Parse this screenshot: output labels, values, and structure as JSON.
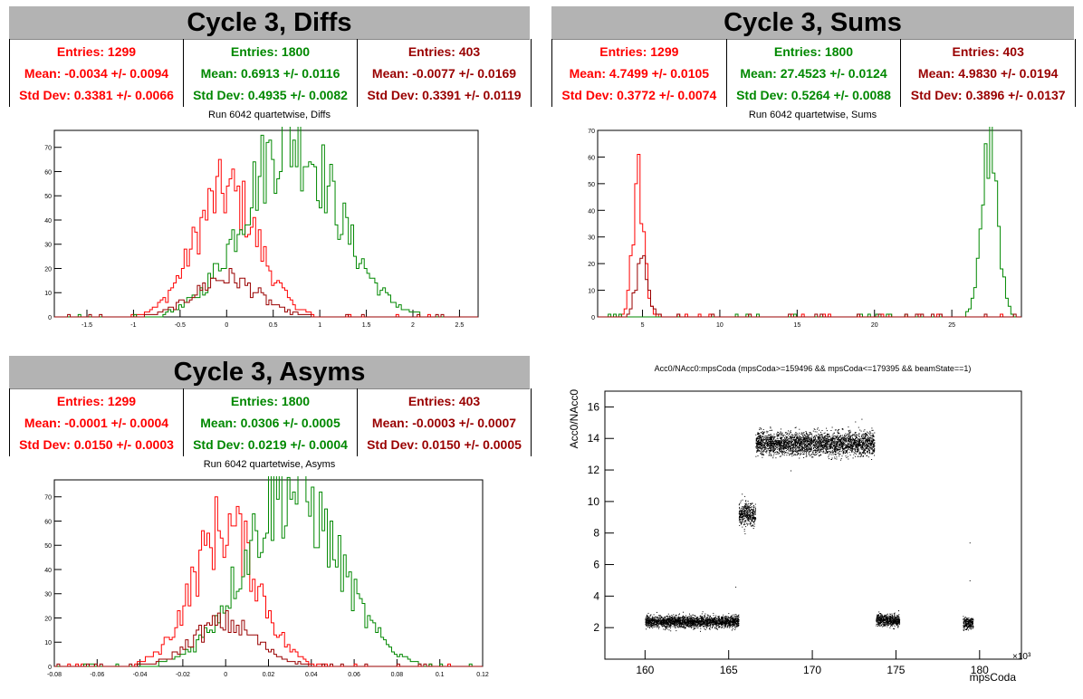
{
  "colors": {
    "red": "#ff0000",
    "green": "#008800",
    "darkred": "#990000"
  },
  "panels": {
    "diffs": {
      "title": "Cycle 3, Diffs",
      "subtitle": "Run 6042 quartetwise, Diffs",
      "stats": [
        {
          "entries": "Entries: 1299",
          "mean": "Mean: -0.0034 +/- 0.0094",
          "std": "Std Dev: 0.3381 +/- 0.0066"
        },
        {
          "entries": "Entries: 1800",
          "mean": "Mean: 0.6913 +/- 0.0116",
          "std": "Std Dev: 0.4935 +/- 0.0082"
        },
        {
          "entries": "Entries: 403",
          "mean": "Mean: -0.0077 +/- 0.0169",
          "std": "Std Dev: 0.3391 +/- 0.0119"
        }
      ]
    },
    "sums": {
      "title": "Cycle 3, Sums",
      "subtitle": "Run 6042 quartetwise, Sums",
      "stats": [
        {
          "entries": "Entries: 1299",
          "mean": "Mean: 4.7499 +/- 0.0105",
          "std": "Std Dev: 0.3772 +/- 0.0074"
        },
        {
          "entries": "Entries: 1800",
          "mean": "Mean: 27.4523 +/- 0.0124",
          "std": "Std Dev: 0.5264 +/- 0.0088"
        },
        {
          "entries": "Entries: 403",
          "mean": "Mean: 4.9830 +/- 0.0194",
          "std": "Std Dev: 0.3896 +/- 0.0137"
        }
      ]
    },
    "asyms": {
      "title": "Cycle 3, Asyms",
      "subtitle": "Run 6042 quartetwise, Asyms",
      "stats": [
        {
          "entries": "Entries: 1299",
          "mean": "Mean: -0.0001 +/- 0.0004",
          "std": "Std Dev: 0.0150 +/- 0.0003"
        },
        {
          "entries": "Entries: 1800",
          "mean": "Mean: 0.0306 +/- 0.0005",
          "std": "Std Dev: 0.0219 +/- 0.0004"
        },
        {
          "entries": "Entries: 403",
          "mean": "Mean: -0.0003 +/- 0.0007",
          "std": "Std Dev: 0.0150 +/- 0.0005"
        }
      ]
    },
    "scatter": {
      "title": "Acc0/NAcc0:mpsCoda (mpsCoda>=159496 && mpsCoda<=179395 && beamState==1)",
      "xlabel": "mpsCoda",
      "ylabel": "Acc0/NAcc0",
      "x_multiplier": "×10³"
    }
  },
  "chart_data": [
    {
      "type": "histogram",
      "xlim": [
        -1.85,
        2.7
      ],
      "ylim": [
        0,
        77
      ],
      "xticks": [
        -1.5,
        -1,
        -0.5,
        0,
        0.5,
        1,
        1.5,
        2,
        2.5
      ],
      "xtick_labels": [
        "-1.5",
        "-1",
        "-0.5",
        "0",
        "0.5",
        "1",
        "1.5",
        "2",
        "2.5"
      ],
      "yticks": [
        0,
        10,
        20,
        30,
        40,
        50,
        60,
        70
      ],
      "series": [
        {
          "color": "red",
          "mean": -0.0034,
          "sigma": 0.3381,
          "peak": 52
        },
        {
          "color": "green",
          "mean": 0.6913,
          "sigma": 0.4935,
          "peak": 74
        },
        {
          "color": "darkred",
          "mean": -0.0077,
          "sigma": 0.3391,
          "peak": 16
        }
      ]
    },
    {
      "type": "histogram",
      "xlim": [
        2.1,
        29.5
      ],
      "ylim": [
        0,
        70
      ],
      "xticks": [
        5,
        10,
        15,
        20,
        25
      ],
      "xtick_labels": [
        "5",
        "10",
        "15",
        "20",
        "25"
      ],
      "yticks": [
        0,
        10,
        20,
        30,
        40,
        50,
        60,
        70
      ],
      "series": [
        {
          "color": "red",
          "mean": 4.7499,
          "sigma": 0.3772,
          "peak": 50
        },
        {
          "color": "green",
          "mean": 27.4523,
          "sigma": 0.5264,
          "peak": 67
        },
        {
          "color": "darkred",
          "mean": 4.983,
          "sigma": 0.3896,
          "peak": 20
        }
      ]
    },
    {
      "type": "histogram",
      "xlim": [
        -0.08,
        0.12
      ],
      "ylim": [
        0,
        77
      ],
      "xticks": [
        -0.08,
        -0.06,
        -0.04,
        -0.02,
        0,
        0.02,
        0.04,
        0.06,
        0.08,
        0.1,
        0.12
      ],
      "xtick_labels": [
        "-0.08",
        "-0.06",
        "-0.04",
        "-0.02",
        "0",
        "0.02",
        "0.04",
        "0.06",
        "0.08",
        "0.1",
        "0.12"
      ],
      "yticks": [
        0,
        10,
        20,
        30,
        40,
        50,
        60,
        70
      ],
      "series": [
        {
          "color": "red",
          "mean": -0.0001,
          "sigma": 0.015,
          "peak": 58
        },
        {
          "color": "green",
          "mean": 0.0306,
          "sigma": 0.0219,
          "peak": 73
        },
        {
          "color": "darkred",
          "mean": -0.0003,
          "sigma": 0.015,
          "peak": 18
        }
      ]
    },
    {
      "type": "scatter",
      "xlim": [
        157.6,
        182.5
      ],
      "ylim": [
        0,
        17
      ],
      "xticks": [
        160,
        165,
        170,
        175,
        180
      ],
      "xtick_labels": [
        "160",
        "165",
        "170",
        "175",
        "180"
      ],
      "yticks": [
        2,
        4,
        6,
        8,
        10,
        12,
        14,
        16
      ],
      "ytick_labels": [
        "2",
        "4",
        "6",
        "8",
        "10",
        "12",
        "14",
        "16"
      ],
      "clusters": [
        {
          "x": [
            160.0,
            165.6
          ],
          "y_center": 2.4,
          "y_spread": 0.3
        },
        {
          "x": [
            165.6,
            166.6
          ],
          "y_center": 9.2,
          "y_spread": 0.6
        },
        {
          "x": [
            166.6,
            173.7
          ],
          "y_center": 13.7,
          "y_spread": 0.6
        },
        {
          "x": [
            173.8,
            175.2
          ],
          "y_center": 2.5,
          "y_spread": 0.3
        },
        {
          "x": [
            179.0,
            179.6
          ],
          "y_center": 2.3,
          "y_spread": 0.3
        }
      ]
    }
  ]
}
